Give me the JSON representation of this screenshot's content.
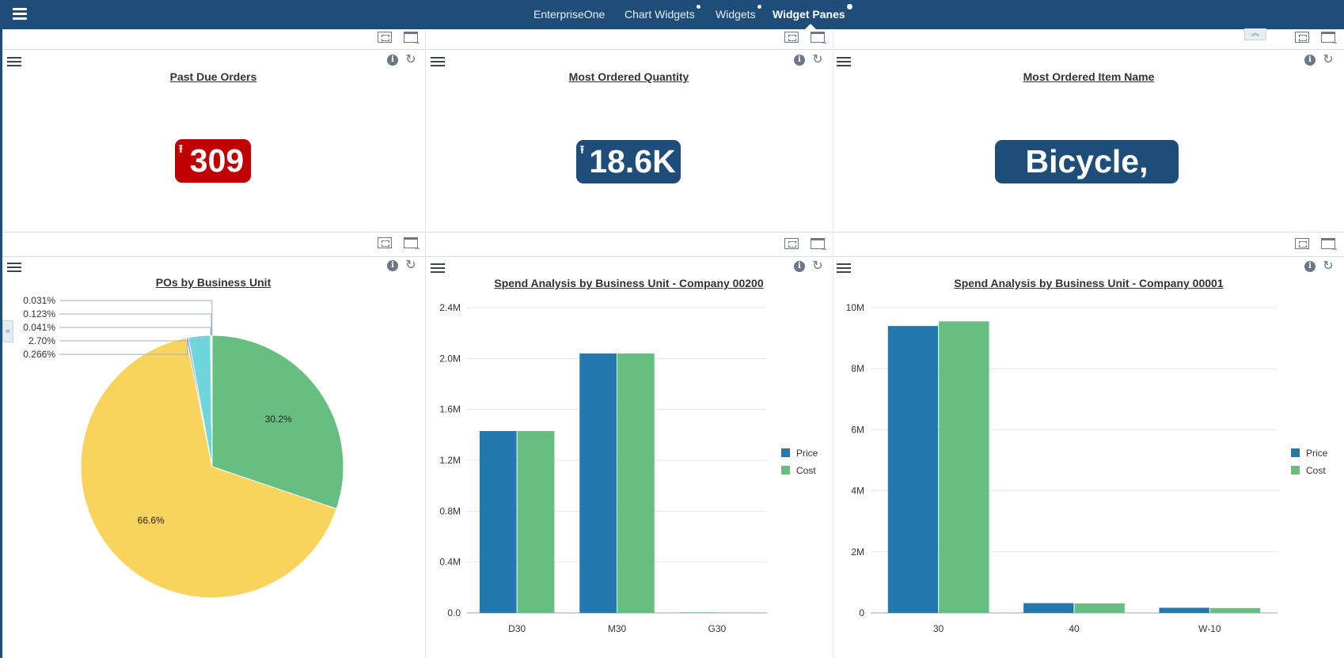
{
  "nav": {
    "tabs": [
      {
        "label": "EnterpriseOne"
      },
      {
        "label": "Chart Widgets"
      },
      {
        "label": "Widgets"
      },
      {
        "label": "Widget Panes"
      }
    ],
    "active_tab": "Widget Panes"
  },
  "kpis": [
    {
      "title": "Past Due Orders",
      "value": "309",
      "color": "#c00000",
      "trend_icon": "arrow-up-bar-icon"
    },
    {
      "title": "Most Ordered Quantity",
      "value": "18.6K",
      "color": "#1f4d7a",
      "trend_icon": "arrow-up-bar-icon"
    },
    {
      "title": "Most Ordered Item Name",
      "value": "Bicycle, Red",
      "color": "#1f4d7a"
    }
  ],
  "chart_titles": {
    "pie": "POs by Business Unit",
    "bar1": "Spend Analysis by Business Unit - Company 00200",
    "bar2": "Spend Analysis by Business Unit - Company 00001"
  },
  "colors": {
    "price": "#2478b0",
    "cost": "#66bf80",
    "pie_yellow": "#f8d45c",
    "pie_green": "#66bf80",
    "pie_teal": "#6fd7dc",
    "nav_bg": "#1f4d7a"
  },
  "chart_data": [
    {
      "type": "pie",
      "title": "POs by Business Unit",
      "slices": [
        {
          "label": "30.2%",
          "value": 30.2,
          "color": "#66bf80"
        },
        {
          "label": "66.6%",
          "value": 66.6,
          "color": "#f8d45c"
        },
        {
          "label": "0.266%",
          "value": 0.266,
          "color": "#9aa6c8"
        },
        {
          "label": "2.70%",
          "value": 2.7,
          "color": "#6fd7dc"
        },
        {
          "label": "0.041%",
          "value": 0.041,
          "color": "#8e6cc0"
        },
        {
          "label": "0.123%",
          "value": 0.123,
          "color": "#e07a5f"
        },
        {
          "label": "0.031%",
          "value": 0.031,
          "color": "#4a90c4"
        }
      ]
    },
    {
      "type": "bar",
      "title": "Spend Analysis by Business Unit - Company 00200",
      "categories": [
        "D30",
        "M30",
        "G30"
      ],
      "series": [
        {
          "name": "Price",
          "values": [
            1430000,
            2040000,
            3000
          ]
        },
        {
          "name": "Cost",
          "values": [
            1430000,
            2040000,
            2000
          ]
        }
      ],
      "ylim": [
        0,
        2400000
      ],
      "yticks": [
        "0.0",
        "0.4M",
        "0.8M",
        "1.2M",
        "1.6M",
        "2.0M",
        "2.4M"
      ],
      "legend": "right",
      "grid": true
    },
    {
      "type": "bar",
      "title": "Spend Analysis by Business Unit - Company 00001",
      "categories": [
        "30",
        "40",
        "W-10"
      ],
      "series": [
        {
          "name": "Price",
          "values": [
            9400000,
            320000,
            170000
          ]
        },
        {
          "name": "Cost",
          "values": [
            9550000,
            310000,
            160000
          ]
        }
      ],
      "ylim": [
        0,
        10000000
      ],
      "yticks": [
        "0",
        "2M",
        "4M",
        "6M",
        "8M",
        "10M"
      ],
      "legend": "right",
      "grid": true
    }
  ]
}
